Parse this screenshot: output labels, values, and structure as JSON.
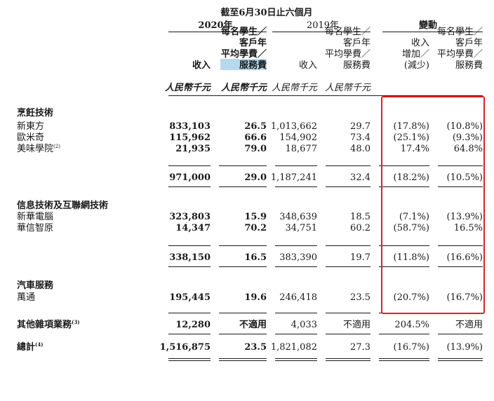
{
  "header": {
    "period": "截至6月30日止六個月",
    "year_2020": "2020年",
    "year_2019": "2019年",
    "change": "變動"
  },
  "col_heads": {
    "c1": [
      "收入"
    ],
    "c2": [
      "每名學生／",
      "客戶年",
      "平均學費／",
      "服務費"
    ],
    "c3": [
      "收入"
    ],
    "c4": [
      "每名學生／",
      "客戶年",
      "平均學費／",
      "服務費"
    ],
    "c5": [
      "收入",
      "增加／",
      "(減少)"
    ],
    "c6": [
      "每名學生／",
      "客戶年",
      "平均學費／",
      "服務費"
    ]
  },
  "units": {
    "c1": "人民幣千元",
    "c2": "人民幣千元",
    "c3": "人民幣千元",
    "c4": "人民幣千元"
  },
  "rows": [
    {
      "label": "烹飪技術",
      "kind": "section"
    },
    {
      "label": "新東方",
      "v": [
        "833,103",
        "26.5",
        "1,013,662",
        "29.7",
        "(17.8%)",
        "(10.8%)"
      ]
    },
    {
      "label": "歐米奇",
      "v": [
        "115,962",
        "66.6",
        "154,902",
        "73.4",
        "(25.1%)",
        "(9.3%)"
      ]
    },
    {
      "label": "美味學院",
      "sup": "(2)",
      "v": [
        "21,935",
        "79.0",
        "18,677",
        "48.0",
        "17.4%",
        "64.8%"
      ]
    },
    {
      "kind": "subtotal",
      "v": [
        "971,000",
        "29.0",
        "1,187,241",
        "32.4",
        "(18.2%)",
        "(10.5%)"
      ]
    },
    {
      "label": "信息技術及互聯網技術",
      "kind": "section"
    },
    {
      "label": "新華電腦",
      "v": [
        "323,803",
        "15.9",
        "348,639",
        "18.5",
        "(7.1%)",
        "(13.9%)"
      ]
    },
    {
      "label": "華信智原",
      "v": [
        "14,347",
        "70.2",
        "34,751",
        "60.2",
        "(58.7%)",
        "16.5%"
      ]
    },
    {
      "kind": "subtotal",
      "v": [
        "338,150",
        "16.5",
        "383,390",
        "19.7",
        "(11.8%)",
        "(16.6%)"
      ]
    },
    {
      "label": "汽車服務",
      "kind": "section"
    },
    {
      "label": "萬通",
      "v": [
        "195,445",
        "19.6",
        "246,418",
        "23.5",
        "(20.7%)",
        "(16.7%)"
      ]
    },
    {
      "label": "其他雜項業務",
      "sup": "(3)",
      "kind": "bold",
      "v": [
        "12,280",
        "不適用",
        "4,033",
        "不適用",
        "204.5%",
        "不適用"
      ]
    },
    {
      "label": "總計",
      "sup": "(4)",
      "kind": "bold",
      "v": [
        "1,516,875",
        "23.5",
        "1,821,082",
        "27.3",
        "(16.7%)",
        "(13.9%)"
      ]
    }
  ],
  "colors": {
    "highlight": "#b7d9ef",
    "annotation_box": "#e02020",
    "text": "#1a1a1a"
  }
}
